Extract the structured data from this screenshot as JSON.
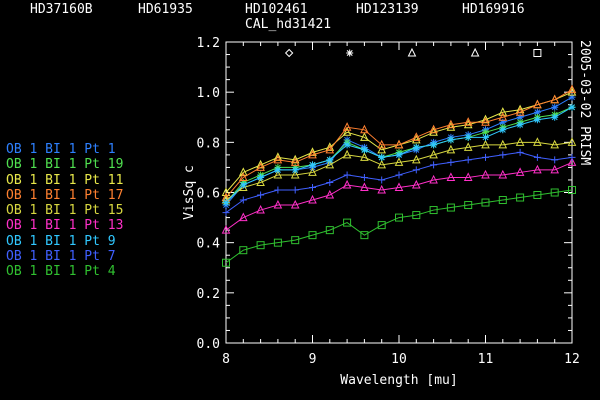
{
  "header": {
    "targets": [
      "HD37160B",
      "HD61935",
      "HD102461",
      "HD123139",
      "HD169916"
    ],
    "calibrator": "CAL_hd31421"
  },
  "side_label": "2005-03-02 PRISM",
  "colors": {
    "background": "#000000",
    "axes": "#ffffff"
  },
  "chart_data": {
    "type": "line",
    "xlabel": "Wavelength [mu]",
    "ylabel": "VisSq c",
    "xlim": [
      8,
      12
    ],
    "ylim": [
      0,
      1.2
    ],
    "xticks": [
      "8",
      "9",
      "10",
      "11",
      "12"
    ],
    "yticks": [
      "0.0",
      "0.2",
      "0.4",
      "0.6",
      "0.8",
      "1.0",
      "1.2"
    ],
    "grid": false,
    "legend_position": "left",
    "x": [
      8.0,
      8.2,
      8.4,
      8.6,
      8.8,
      9.0,
      9.2,
      9.4,
      9.6,
      9.8,
      10.0,
      10.2,
      10.4,
      10.6,
      10.8,
      11.0,
      11.2,
      11.4,
      11.6,
      11.8,
      12.0
    ],
    "top_markers": [
      {
        "x": 8.73,
        "symbol": "diamond"
      },
      {
        "x": 9.43,
        "symbol": "asterisk"
      },
      {
        "x": 10.15,
        "symbol": "triangle"
      },
      {
        "x": 10.88,
        "symbol": "triangle"
      },
      {
        "x": 11.6,
        "symbol": "square"
      }
    ],
    "series": [
      {
        "name": "OB 1 BI 1 Pt 1",
        "color": "#2e80ff",
        "symbol": "asterisk",
        "values": [
          0.55,
          0.63,
          0.66,
          0.69,
          0.69,
          0.7,
          0.72,
          0.81,
          0.78,
          0.74,
          0.75,
          0.77,
          0.8,
          0.82,
          0.83,
          0.85,
          0.88,
          0.9,
          0.92,
          0.94,
          0.98
        ]
      },
      {
        "name": "OB 1 BI 1 Pt 19",
        "color": "#50e050",
        "symbol": "asterisk",
        "values": [
          0.56,
          0.64,
          0.67,
          0.7,
          0.7,
          0.71,
          0.73,
          0.8,
          0.77,
          0.74,
          0.76,
          0.78,
          0.79,
          0.81,
          0.82,
          0.84,
          0.86,
          0.88,
          0.9,
          0.91,
          0.94
        ]
      },
      {
        "name": "OB 1 BI 1 Pt 11",
        "color": "#e8e84a",
        "symbol": "triangle",
        "values": [
          0.6,
          0.68,
          0.71,
          0.74,
          0.73,
          0.76,
          0.78,
          0.84,
          0.82,
          0.77,
          0.79,
          0.81,
          0.84,
          0.86,
          0.87,
          0.89,
          0.92,
          0.93,
          0.95,
          0.97,
          1.0
        ]
      },
      {
        "name": "OB 1 BI 1 Pt 17",
        "color": "#ff8030",
        "symbol": "triangle",
        "values": [
          0.58,
          0.66,
          0.7,
          0.73,
          0.72,
          0.75,
          0.77,
          0.86,
          0.85,
          0.79,
          0.79,
          0.82,
          0.85,
          0.87,
          0.88,
          0.88,
          0.9,
          0.92,
          0.95,
          0.97,
          1.01
        ]
      },
      {
        "name": "OB 1 BI 1 Pt 15",
        "color": "#d8d840",
        "symbol": "triangle",
        "values": [
          0.57,
          0.62,
          0.64,
          0.67,
          0.67,
          0.68,
          0.71,
          0.75,
          0.74,
          0.71,
          0.72,
          0.73,
          0.75,
          0.77,
          0.78,
          0.79,
          0.79,
          0.8,
          0.8,
          0.79,
          0.8
        ]
      },
      {
        "name": "OB 1 BI 1 Pt 13",
        "color": "#ff30c8",
        "symbol": "triangle",
        "values": [
          0.45,
          0.5,
          0.53,
          0.55,
          0.55,
          0.57,
          0.59,
          0.63,
          0.62,
          0.61,
          0.62,
          0.63,
          0.65,
          0.66,
          0.66,
          0.67,
          0.67,
          0.68,
          0.69,
          0.69,
          0.72
        ]
      },
      {
        "name": "OB 1 BI 1 Pt 9",
        "color": "#30c8ff",
        "symbol": "asterisk",
        "values": [
          0.56,
          0.63,
          0.66,
          0.69,
          0.69,
          0.71,
          0.73,
          0.79,
          0.77,
          0.74,
          0.75,
          0.78,
          0.79,
          0.81,
          0.82,
          0.82,
          0.85,
          0.87,
          0.89,
          0.9,
          0.94
        ]
      },
      {
        "name": "OB 1 BI 1 Pt 7",
        "color": "#4060ff",
        "symbol": "plus",
        "values": [
          0.52,
          0.57,
          0.59,
          0.61,
          0.61,
          0.62,
          0.64,
          0.67,
          0.66,
          0.65,
          0.67,
          0.69,
          0.71,
          0.72,
          0.73,
          0.74,
          0.75,
          0.76,
          0.74,
          0.73,
          0.74
        ]
      },
      {
        "name": "OB 1 BI 1 Pt 4",
        "color": "#30c030",
        "symbol": "square",
        "values": [
          0.32,
          0.37,
          0.39,
          0.4,
          0.41,
          0.43,
          0.45,
          0.48,
          0.43,
          0.47,
          0.5,
          0.51,
          0.53,
          0.54,
          0.55,
          0.56,
          0.57,
          0.58,
          0.59,
          0.6,
          0.61
        ]
      }
    ]
  }
}
